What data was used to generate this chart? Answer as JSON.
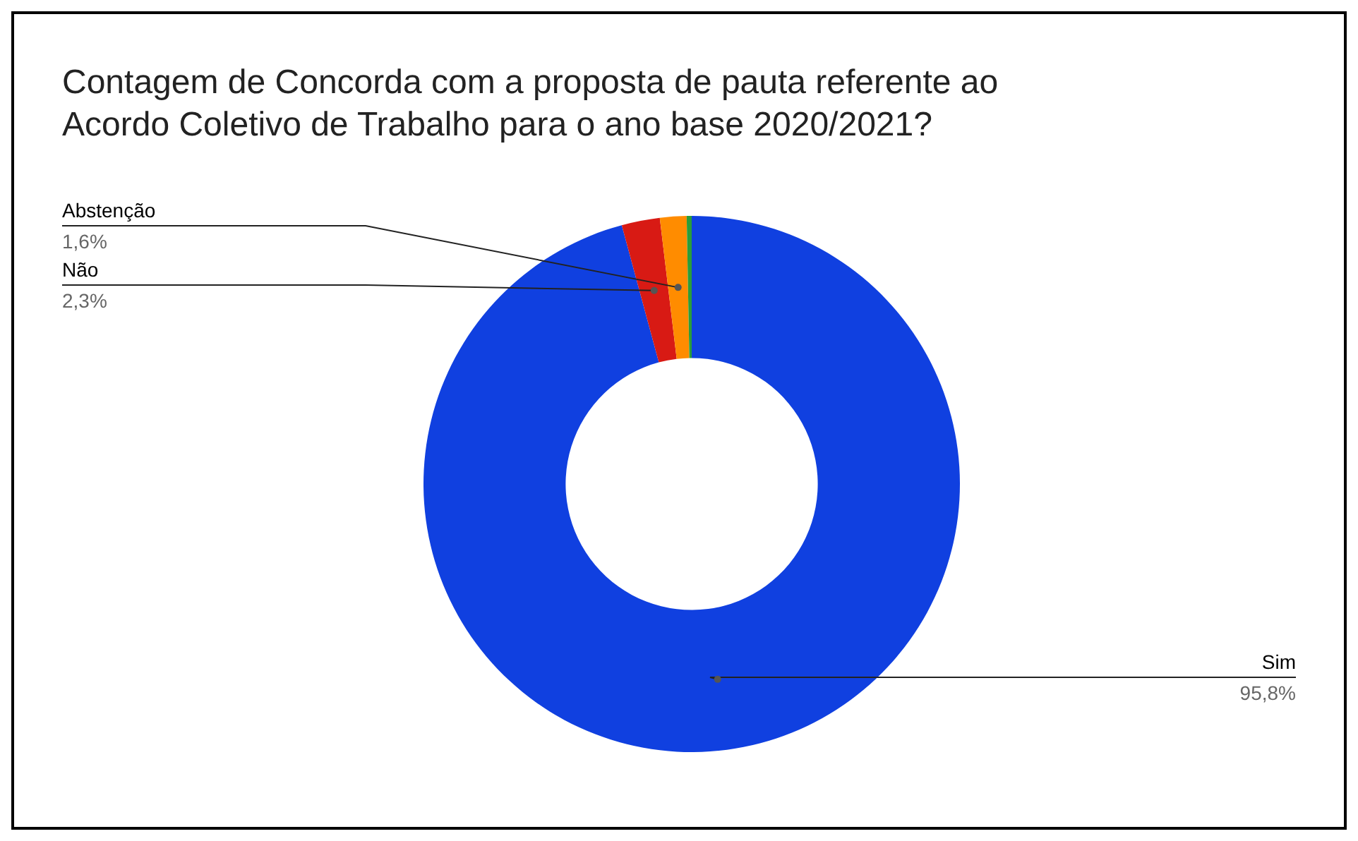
{
  "chart_data": {
    "type": "donut",
    "title": "Contagem de Concorda com a proposta de pauta referente ao Acordo Coletivo de Trabalho para o ano base 2020/2021?",
    "categories": [
      "Sim",
      "Não",
      "Abstenção",
      null
    ],
    "values": [
      95.8,
      2.3,
      1.6,
      0.3
    ],
    "colors": [
      "#1040e0",
      "#d81a14",
      "#ff8c00",
      "#2a9d3a"
    ],
    "value_labels": [
      "95,8%",
      "2,3%",
      "1,6%",
      null
    ]
  }
}
